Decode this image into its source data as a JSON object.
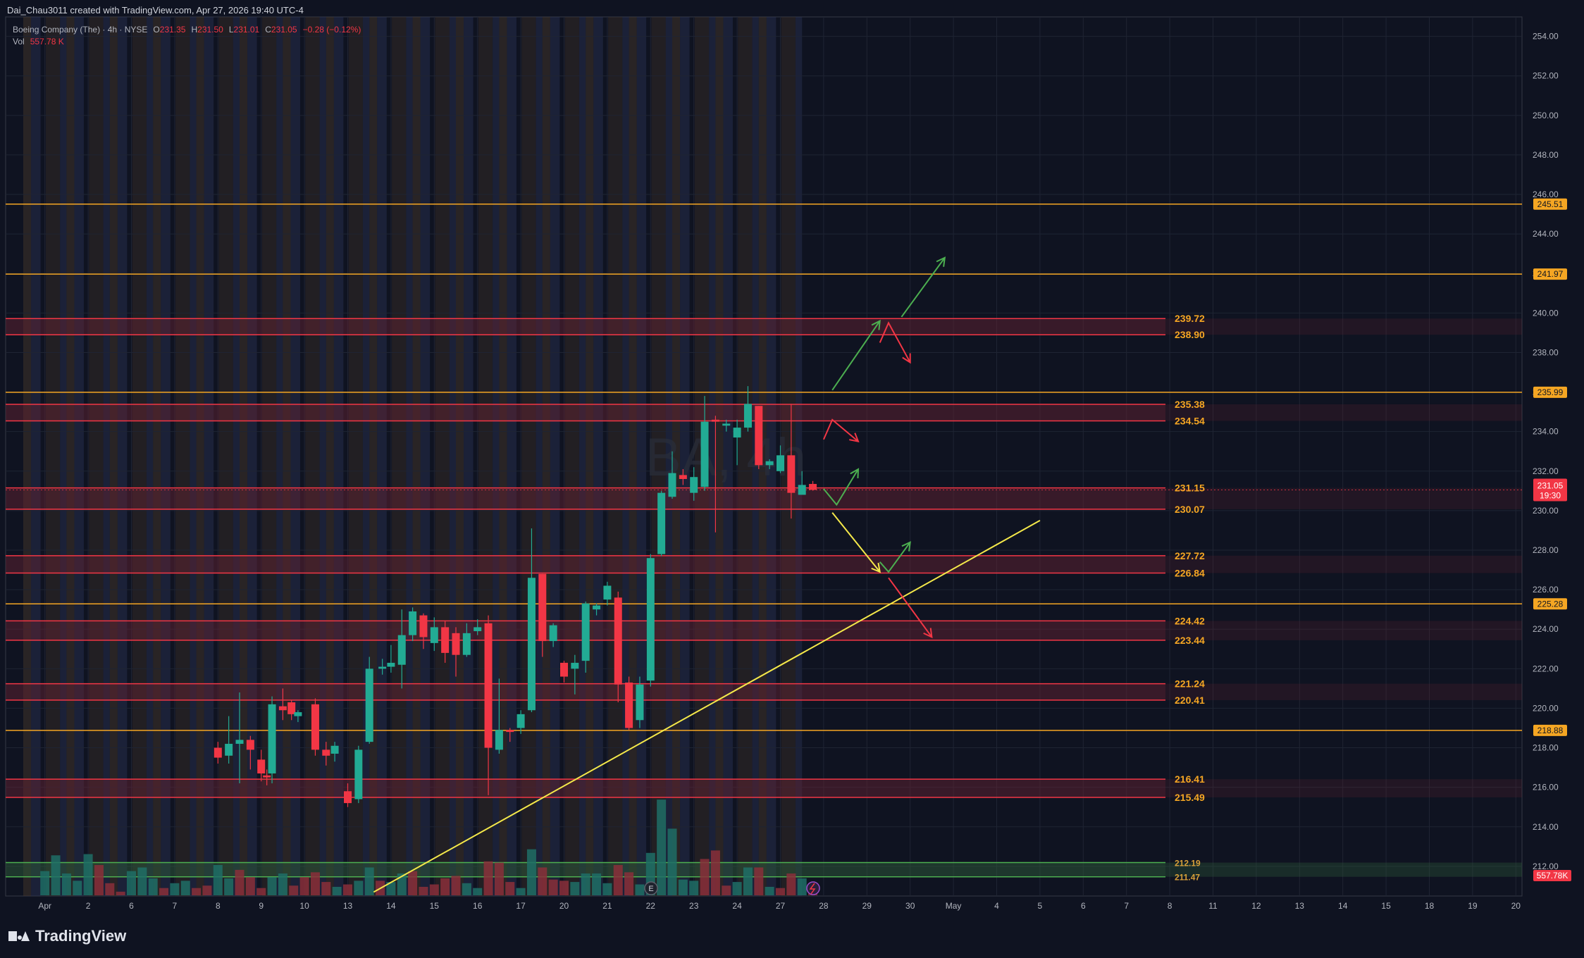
{
  "header": {
    "attribution": "Dai_Chau3011 created with TradingView.com, Apr 27, 2026 19:40 UTC-4"
  },
  "legend": {
    "symbol": "Boeing Company (The) · 4h · NYSE",
    "o_label": "O",
    "o_value": "231.35",
    "h_label": "H",
    "h_value": "231.50",
    "l_label": "L",
    "l_value": "231.01",
    "c_label": "C",
    "c_value": "231.05",
    "change": "−0.28 (−0.12%)",
    "vol_label": "Vol",
    "vol_value": "557.78 K"
  },
  "watermark": "BA, 4h",
  "footer": {
    "brand": "TradingView"
  },
  "colors": {
    "background": "#0f1321",
    "up": "#22ab94",
    "down": "#f23645",
    "orange_line": "#f5a623",
    "zone_line": "#f23645",
    "trendline": "#f5e94a",
    "arrow_green": "#4caf50",
    "arrow_red": "#f23645",
    "arrow_yellow": "#f5e94a"
  },
  "chart_data": {
    "type": "candlestick",
    "timeframe": "4h",
    "ylim": [
      210.7,
      255.2
    ],
    "y_ticks": [
      "254.00",
      "252.00",
      "250.00",
      "248.00",
      "246.00",
      "244.00",
      "242.00",
      "240.00",
      "238.00",
      "236.00",
      "234.00",
      "232.00",
      "230.00",
      "228.00",
      "226.00",
      "224.00",
      "222.00",
      "220.00",
      "218.00",
      "216.00",
      "214.00",
      "212.00"
    ],
    "x_ticks": [
      {
        "label": "Apr",
        "d": 1
      },
      {
        "label": "2",
        "d": 2
      },
      {
        "label": "6",
        "d": 3
      },
      {
        "label": "7",
        "d": 4
      },
      {
        "label": "8",
        "d": 5
      },
      {
        "label": "9",
        "d": 6
      },
      {
        "label": "10",
        "d": 7
      },
      {
        "label": "13",
        "d": 8
      },
      {
        "label": "14",
        "d": 9
      },
      {
        "label": "15",
        "d": 10
      },
      {
        "label": "16",
        "d": 11
      },
      {
        "label": "17",
        "d": 12
      },
      {
        "label": "20",
        "d": 13
      },
      {
        "label": "21",
        "d": 14
      },
      {
        "label": "22",
        "d": 15
      },
      {
        "label": "23",
        "d": 16
      },
      {
        "label": "24",
        "d": 17
      },
      {
        "label": "27",
        "d": 18
      },
      {
        "label": "28",
        "d": 19
      },
      {
        "label": "29",
        "d": 20
      },
      {
        "label": "30",
        "d": 21
      },
      {
        "label": "May",
        "d": 22
      },
      {
        "label": "4",
        "d": 23
      },
      {
        "label": "5",
        "d": 24
      },
      {
        "label": "6",
        "d": 25
      },
      {
        "label": "7",
        "d": 26
      },
      {
        "label": "8",
        "d": 27
      },
      {
        "label": "11",
        "d": 28
      },
      {
        "label": "12",
        "d": 29
      },
      {
        "label": "13",
        "d": 30
      },
      {
        "label": "14",
        "d": 31
      },
      {
        "label": "15",
        "d": 32
      },
      {
        "label": "18",
        "d": 33
      },
      {
        "label": "19",
        "d": 34
      },
      {
        "label": "20",
        "d": 35
      }
    ],
    "orange_levels": [
      {
        "price": 245.51,
        "label": "245.51"
      },
      {
        "price": 241.97,
        "label": "241.97"
      },
      {
        "price": 235.99,
        "label": "235.99"
      },
      {
        "price": 225.28,
        "label": "225.28"
      },
      {
        "price": 218.88,
        "label": "218.88"
      }
    ],
    "zones": [
      {
        "top": 239.72,
        "bottom": 238.9,
        "top_label": "239.72",
        "bottom_label": "238.90"
      },
      {
        "top": 235.38,
        "bottom": 234.54,
        "top_label": "235.38",
        "bottom_label": "234.54"
      },
      {
        "top": 231.15,
        "bottom": 230.07,
        "top_label": "231.15",
        "bottom_label": "230.07"
      },
      {
        "top": 227.72,
        "bottom": 226.84,
        "top_label": "227.72",
        "bottom_label": "226.84"
      },
      {
        "top": 224.42,
        "bottom": 223.44,
        "top_label": "224.42",
        "bottom_label": "223.44"
      },
      {
        "top": 221.24,
        "bottom": 220.41,
        "top_label": "221.24",
        "bottom_label": "220.41"
      },
      {
        "top": 216.41,
        "bottom": 215.49,
        "top_label": "216.41",
        "bottom_label": "215.49"
      },
      {
        "top": 212.19,
        "bottom": 211.47,
        "top_label": "212.19",
        "bottom_label": "211.47",
        "green": true
      }
    ],
    "current_price": {
      "value": "231.05",
      "countdown": "19:30",
      "price": 231.05
    },
    "volume_badge": "557.78K",
    "trendline": {
      "from": {
        "d": 8.6,
        "price": 210.7
      },
      "to": {
        "d": 24.0,
        "price": 229.5
      }
    },
    "projections": [
      {
        "color": "green",
        "points": [
          [
            19.2,
            236.1
          ],
          [
            20.3,
            239.6
          ]
        ]
      },
      {
        "color": "green",
        "points": [
          [
            20.8,
            239.8
          ],
          [
            21.8,
            242.8
          ]
        ]
      },
      {
        "color": "red",
        "points": [
          [
            20.3,
            238.5
          ],
          [
            20.5,
            239.5
          ],
          [
            21.0,
            237.5
          ]
        ]
      },
      {
        "color": "red",
        "points": [
          [
            19.0,
            233.6
          ],
          [
            19.2,
            234.6
          ],
          [
            19.8,
            233.5
          ]
        ]
      },
      {
        "color": "green",
        "points": [
          [
            19.0,
            231.1
          ],
          [
            19.3,
            230.3
          ],
          [
            19.8,
            232.1
          ]
        ]
      },
      {
        "color": "yellow",
        "points": [
          [
            19.2,
            229.9
          ],
          [
            20.3,
            226.9
          ]
        ]
      },
      {
        "color": "green",
        "points": [
          [
            20.3,
            227.4
          ],
          [
            20.5,
            226.9
          ],
          [
            21.0,
            228.4
          ]
        ]
      },
      {
        "color": "red",
        "points": [
          [
            20.5,
            226.6
          ],
          [
            21.5,
            223.6
          ]
        ]
      }
    ],
    "candles": [
      [
        5.0,
        218.0,
        217.5,
        218.3,
        217.2
      ],
      [
        5.25,
        217.6,
        218.2,
        219.6,
        217.2
      ],
      [
        5.5,
        218.2,
        218.4,
        220.8,
        216.2
      ],
      [
        5.75,
        218.4,
        217.9,
        218.6,
        216.9
      ],
      [
        6.0,
        217.4,
        216.7,
        217.9,
        216.3
      ],
      [
        6.13,
        216.6,
        216.5,
        216.9,
        216.1
      ],
      [
        6.25,
        216.7,
        220.2,
        220.6,
        216.2
      ],
      [
        6.5,
        220.1,
        219.9,
        221.0,
        219.4
      ],
      [
        6.7,
        220.3,
        219.7,
        220.4,
        219.4
      ],
      [
        6.85,
        219.6,
        219.8,
        219.9,
        219.3
      ],
      [
        7.25,
        220.2,
        217.9,
        220.5,
        217.6
      ],
      [
        7.5,
        217.9,
        217.6,
        218.3,
        217.1
      ],
      [
        7.7,
        217.7,
        218.1,
        218.3,
        217.3
      ],
      [
        8.0,
        215.8,
        215.2,
        216.2,
        215.0
      ],
      [
        8.25,
        215.4,
        217.9,
        218.1,
        215.2
      ],
      [
        8.5,
        218.3,
        222.0,
        222.6,
        218.2
      ],
      [
        8.8,
        222.0,
        222.1,
        222.5,
        221.7
      ],
      [
        9.0,
        222.1,
        222.3,
        223.2,
        221.8
      ],
      [
        9.25,
        222.2,
        223.7,
        225.0,
        221.0
      ],
      [
        9.5,
        223.7,
        224.9,
        225.1,
        223.4
      ],
      [
        9.75,
        224.7,
        223.6,
        224.8,
        223.0
      ],
      [
        10.0,
        223.3,
        224.1,
        224.6,
        222.9
      ],
      [
        10.25,
        224.1,
        222.8,
        224.4,
        222.3
      ],
      [
        10.5,
        223.8,
        222.7,
        224.1,
        221.6
      ],
      [
        10.75,
        222.7,
        223.8,
        224.3,
        222.6
      ],
      [
        11.0,
        223.9,
        224.1,
        224.5,
        223.7
      ],
      [
        11.25,
        224.3,
        218.0,
        224.7,
        215.6
      ],
      [
        11.5,
        217.9,
        218.9,
        221.5,
        217.7
      ],
      [
        11.75,
        218.9,
        218.8,
        219.0,
        218.3
      ],
      [
        12.0,
        219.0,
        219.7,
        219.9,
        218.7
      ],
      [
        12.25,
        219.9,
        226.6,
        229.1,
        219.8
      ],
      [
        12.5,
        226.8,
        223.4,
        226.8,
        222.6
      ],
      [
        12.75,
        223.4,
        224.2,
        224.3,
        223.1
      ],
      [
        13.0,
        222.3,
        221.6,
        222.4,
        221.3
      ],
      [
        13.25,
        222.0,
        222.3,
        222.7,
        220.7
      ],
      [
        13.5,
        222.4,
        225.3,
        225.4,
        221.8
      ],
      [
        13.75,
        225.0,
        225.2,
        225.3,
        224.7
      ],
      [
        14.0,
        225.5,
        226.2,
        226.4,
        225.2
      ],
      [
        14.25,
        225.6,
        221.2,
        225.9,
        220.3
      ],
      [
        14.5,
        221.3,
        219.0,
        221.6,
        218.9
      ],
      [
        14.75,
        219.4,
        221.2,
        221.6,
        219.0
      ],
      [
        15.0,
        221.4,
        227.6,
        227.8,
        221.1
      ],
      [
        15.25,
        227.8,
        230.9,
        231.0,
        227.7
      ],
      [
        15.5,
        230.7,
        231.9,
        233.0,
        230.6
      ],
      [
        15.75,
        231.8,
        231.6,
        232.1,
        231.3
      ],
      [
        16.0,
        230.9,
        231.7,
        232.2,
        230.5
      ],
      [
        16.25,
        231.2,
        234.5,
        235.8,
        231.0
      ],
      [
        16.5,
        234.6,
        234.5,
        234.8,
        228.9
      ],
      [
        16.75,
        234.3,
        234.4,
        234.6,
        234.0
      ],
      [
        17.0,
        233.7,
        234.2,
        234.6,
        232.3
      ],
      [
        17.25,
        234.2,
        235.4,
        236.3,
        234.0
      ],
      [
        17.5,
        235.3,
        232.3,
        235.3,
        232.1
      ],
      [
        17.75,
        232.3,
        232.5,
        232.6,
        232.1
      ],
      [
        18.0,
        232.0,
        232.8,
        233.3,
        231.9
      ],
      [
        18.25,
        232.8,
        230.9,
        235.4,
        229.6
      ],
      [
        18.5,
        230.8,
        231.3,
        232.0,
        230.9
      ],
      [
        18.75,
        231.35,
        231.05,
        231.5,
        231.01
      ]
    ],
    "volume": [
      {
        "d": 1.0,
        "v": 20,
        "up": true
      },
      {
        "d": 1.25,
        "v": 33,
        "up": true
      },
      {
        "d": 1.5,
        "v": 18,
        "up": true
      },
      {
        "d": 1.75,
        "v": 12,
        "up": true
      },
      {
        "d": 2.0,
        "v": 34,
        "up": true
      },
      {
        "d": 2.25,
        "v": 25,
        "up": false
      },
      {
        "d": 2.5,
        "v": 10,
        "up": false
      },
      {
        "d": 2.75,
        "v": 3,
        "up": false
      },
      {
        "d": 3.0,
        "v": 20,
        "up": true
      },
      {
        "d": 3.25,
        "v": 23,
        "up": true
      },
      {
        "d": 3.5,
        "v": 14,
        "up": true
      },
      {
        "d": 3.75,
        "v": 6,
        "up": false
      },
      {
        "d": 4.0,
        "v": 10,
        "up": true
      },
      {
        "d": 4.25,
        "v": 12,
        "up": true
      },
      {
        "d": 4.5,
        "v": 6,
        "up": false
      },
      {
        "d": 4.75,
        "v": 8,
        "up": false
      },
      {
        "d": 5.0,
        "v": 25,
        "up": true
      },
      {
        "d": 5.25,
        "v": 14,
        "up": true
      },
      {
        "d": 5.5,
        "v": 21,
        "up": false
      },
      {
        "d": 5.75,
        "v": 15,
        "up": false
      },
      {
        "d": 6.0,
        "v": 6,
        "up": false
      },
      {
        "d": 6.25,
        "v": 15,
        "up": true
      },
      {
        "d": 6.5,
        "v": 18,
        "up": true
      },
      {
        "d": 6.75,
        "v": 8,
        "up": false
      },
      {
        "d": 7.0,
        "v": 15,
        "up": false
      },
      {
        "d": 7.25,
        "v": 19,
        "up": false
      },
      {
        "d": 7.5,
        "v": 11,
        "up": false
      },
      {
        "d": 7.75,
        "v": 7,
        "up": true
      },
      {
        "d": 8.0,
        "v": 9,
        "up": false
      },
      {
        "d": 8.25,
        "v": 12,
        "up": true
      },
      {
        "d": 8.5,
        "v": 23,
        "up": true
      },
      {
        "d": 8.75,
        "v": 12,
        "up": false
      },
      {
        "d": 9.0,
        "v": 11,
        "up": true
      },
      {
        "d": 9.25,
        "v": 18,
        "up": true
      },
      {
        "d": 9.5,
        "v": 20,
        "up": false
      },
      {
        "d": 9.75,
        "v": 7,
        "up": false
      },
      {
        "d": 10.0,
        "v": 9,
        "up": false
      },
      {
        "d": 10.25,
        "v": 14,
        "up": false
      },
      {
        "d": 10.5,
        "v": 16,
        "up": false
      },
      {
        "d": 10.75,
        "v": 10,
        "up": true
      },
      {
        "d": 11.0,
        "v": 6,
        "up": true
      },
      {
        "d": 11.25,
        "v": 28,
        "up": false
      },
      {
        "d": 11.5,
        "v": 27,
        "up": false
      },
      {
        "d": 11.75,
        "v": 11,
        "up": false
      },
      {
        "d": 12.0,
        "v": 6,
        "up": true
      },
      {
        "d": 12.25,
        "v": 38,
        "up": true
      },
      {
        "d": 12.5,
        "v": 23,
        "up": false
      },
      {
        "d": 12.75,
        "v": 13,
        "up": false
      },
      {
        "d": 13.0,
        "v": 12,
        "up": false
      },
      {
        "d": 13.25,
        "v": 11,
        "up": true
      },
      {
        "d": 13.5,
        "v": 18,
        "up": true
      },
      {
        "d": 13.75,
        "v": 18,
        "up": true
      },
      {
        "d": 14.0,
        "v": 10,
        "up": true
      },
      {
        "d": 14.25,
        "v": 25,
        "up": false
      },
      {
        "d": 14.5,
        "v": 19,
        "up": false
      },
      {
        "d": 14.75,
        "v": 9,
        "up": true
      },
      {
        "d": 15.0,
        "v": 35,
        "up": true
      },
      {
        "d": 15.25,
        "v": 79,
        "up": true
      },
      {
        "d": 15.5,
        "v": 55,
        "up": true
      },
      {
        "d": 15.75,
        "v": 13,
        "up": true
      },
      {
        "d": 16.0,
        "v": 12,
        "up": true
      },
      {
        "d": 16.25,
        "v": 30,
        "up": false
      },
      {
        "d": 16.5,
        "v": 37,
        "up": false
      },
      {
        "d": 16.75,
        "v": 8,
        "up": false
      },
      {
        "d": 17.0,
        "v": 11,
        "up": true
      },
      {
        "d": 17.25,
        "v": 23,
        "up": true
      },
      {
        "d": 17.5,
        "v": 23,
        "up": false
      },
      {
        "d": 17.75,
        "v": 7,
        "up": true
      },
      {
        "d": 18.0,
        "v": 6,
        "up": false
      },
      {
        "d": 18.25,
        "v": 18,
        "up": false
      },
      {
        "d": 18.5,
        "v": 14,
        "up": true
      },
      {
        "d": 18.75,
        "v": 6,
        "up": false
      }
    ],
    "grid": true
  }
}
